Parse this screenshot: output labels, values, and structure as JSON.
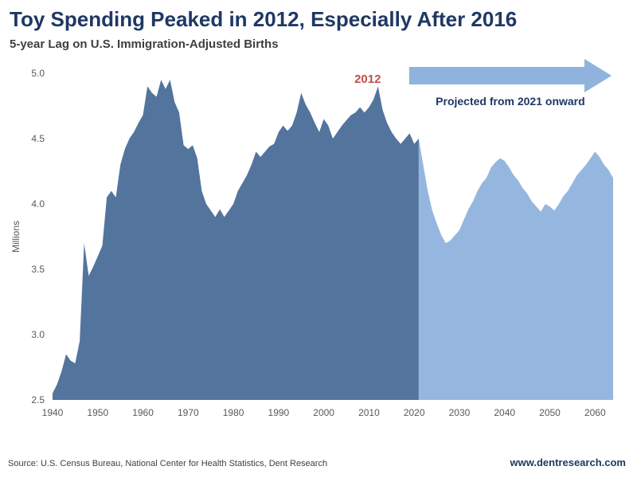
{
  "header": {
    "title": "Toy Spending Peaked in 2012, Especially After 2016",
    "subtitle": "5-year Lag on U.S. Immigration-Adjusted Births"
  },
  "chart_data": {
    "type": "area",
    "title": "Toy Spending Peaked in 2012, Especially After 2016",
    "subtitle": "5-year Lag on U.S. Immigration-Adjusted Births",
    "ylabel": "Millions",
    "xlabel": "",
    "ylim": [
      2.5,
      5.0
    ],
    "xlim": [
      1940,
      2064
    ],
    "yticks": [
      2.5,
      3.0,
      3.5,
      4.0,
      4.5,
      5.0
    ],
    "xticks": [
      1940,
      1950,
      1960,
      1970,
      1980,
      1990,
      2000,
      2010,
      2020,
      2030,
      2040,
      2050,
      2060
    ],
    "grid": false,
    "legend": "none",
    "projection_start_year": 2021,
    "years": [
      1940,
      1941,
      1942,
      1943,
      1944,
      1945,
      1946,
      1947,
      1948,
      1949,
      1950,
      1951,
      1952,
      1953,
      1954,
      1955,
      1956,
      1957,
      1958,
      1959,
      1960,
      1961,
      1962,
      1963,
      1964,
      1965,
      1966,
      1967,
      1968,
      1969,
      1970,
      1971,
      1972,
      1973,
      1974,
      1975,
      1976,
      1977,
      1978,
      1979,
      1980,
      1981,
      1982,
      1983,
      1984,
      1985,
      1986,
      1987,
      1988,
      1989,
      1990,
      1991,
      1992,
      1993,
      1994,
      1995,
      1996,
      1997,
      1998,
      1999,
      2000,
      2001,
      2002,
      2003,
      2004,
      2005,
      2006,
      2007,
      2008,
      2009,
      2010,
      2011,
      2012,
      2013,
      2014,
      2015,
      2016,
      2017,
      2018,
      2019,
      2020,
      2021,
      2022,
      2023,
      2024,
      2025,
      2026,
      2027,
      2028,
      2029,
      2030,
      2031,
      2032,
      2033,
      2034,
      2035,
      2036,
      2037,
      2038,
      2039,
      2040,
      2041,
      2042,
      2043,
      2044,
      2045,
      2046,
      2047,
      2048,
      2049,
      2050,
      2051,
      2052,
      2053,
      2054,
      2055,
      2056,
      2057,
      2058,
      2059,
      2060,
      2061,
      2062,
      2063,
      2064
    ],
    "values": [
      2.55,
      2.62,
      2.72,
      2.85,
      2.8,
      2.78,
      2.95,
      3.7,
      3.45,
      3.52,
      3.6,
      3.68,
      4.05,
      4.1,
      4.05,
      4.3,
      4.42,
      4.5,
      4.55,
      4.62,
      4.68,
      4.9,
      4.85,
      4.82,
      4.95,
      4.88,
      4.95,
      4.78,
      4.7,
      4.45,
      4.42,
      4.45,
      4.35,
      4.1,
      4.0,
      3.95,
      3.9,
      3.96,
      3.9,
      3.95,
      4.0,
      4.1,
      4.16,
      4.22,
      4.3,
      4.4,
      4.36,
      4.4,
      4.44,
      4.46,
      4.55,
      4.6,
      4.56,
      4.6,
      4.7,
      4.85,
      4.76,
      4.7,
      4.62,
      4.55,
      4.65,
      4.6,
      4.5,
      4.55,
      4.6,
      4.64,
      4.68,
      4.7,
      4.74,
      4.7,
      4.74,
      4.8,
      4.9,
      4.72,
      4.62,
      4.55,
      4.5,
      4.46,
      4.5,
      4.54,
      4.46,
      4.5,
      4.3,
      4.1,
      3.95,
      3.85,
      3.76,
      3.7,
      3.72,
      3.76,
      3.8,
      3.88,
      3.96,
      4.02,
      4.1,
      4.16,
      4.2,
      4.28,
      4.32,
      4.35,
      4.33,
      4.28,
      4.22,
      4.18,
      4.12,
      4.08,
      4.02,
      3.98,
      3.94,
      4.0,
      3.98,
      3.95,
      4.0,
      4.06,
      4.1,
      4.16,
      4.22,
      4.26,
      4.3,
      4.35,
      4.4,
      4.36,
      4.3,
      4.26,
      4.2
    ],
    "series_names": {
      "historical": "Immigration-Adjusted Births (5-yr lag)",
      "projected": "Projection"
    },
    "annotations": {
      "peak_label": "2012",
      "peak_year": 2012,
      "projection_label": "Projected from 2021 onward"
    },
    "colors": {
      "historical_area": "#53749D",
      "projected_area": "#95B7DF",
      "arrow_fill": "#8FB3DC",
      "peak_label_color": "#C0504D",
      "arrow_label_color": "#1F3864",
      "tick_color": "#595959",
      "title_color": "#1F3864"
    }
  },
  "footer": {
    "source": "Source: U.S. Census Bureau, National Center for Health Statistics, Dent Research",
    "website": "www.dentresearch.com"
  }
}
